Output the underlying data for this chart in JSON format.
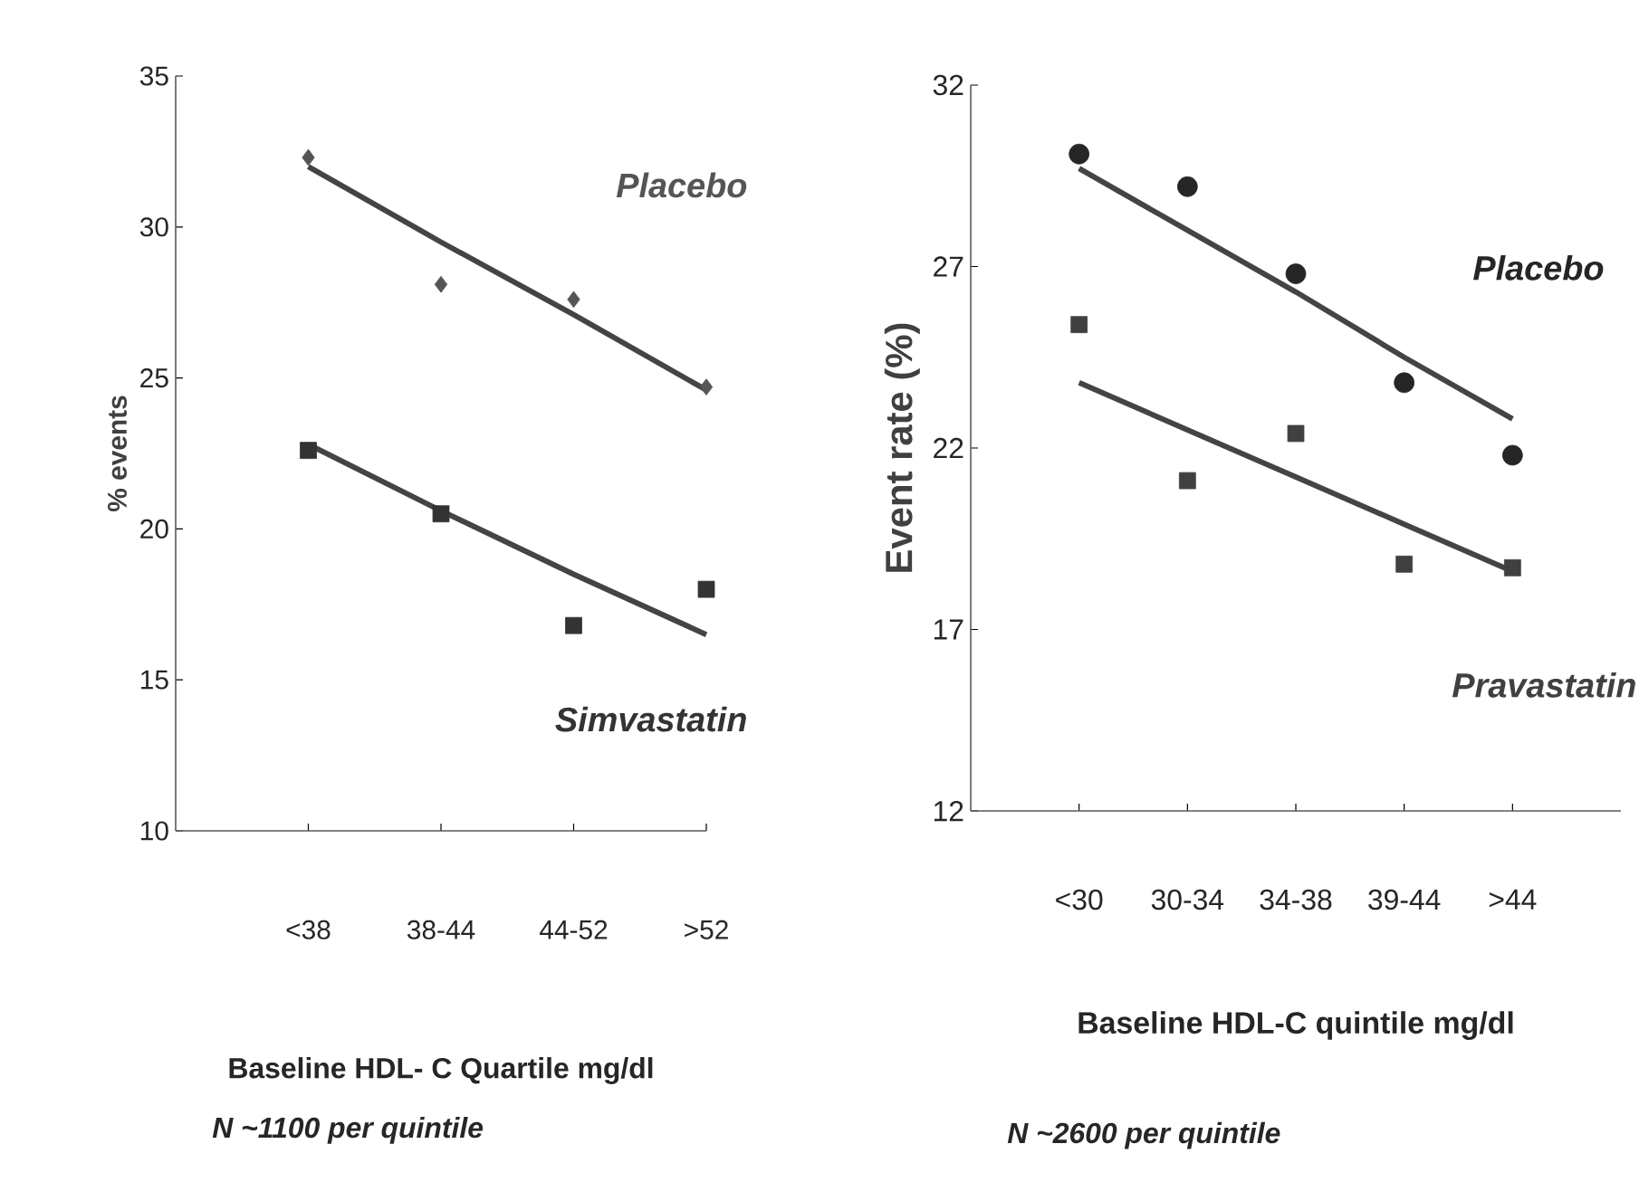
{
  "chart_data": [
    {
      "type": "scatter",
      "ylabel": "% events",
      "xlabel": "Baseline HDL- C Quartile mg/dl",
      "annotations": [
        "N ~1100 per quintile"
      ],
      "categories": [
        "<38",
        "38-44",
        "44-52",
        ">52"
      ],
      "ylim": [
        10,
        35
      ],
      "yticks": [
        10,
        15,
        20,
        25,
        30,
        35
      ],
      "series": [
        {
          "name": "Placebo",
          "color": "#555555",
          "marker": "diamond",
          "values": [
            32.3,
            28.1,
            27.6,
            24.7
          ]
        },
        {
          "name": "Simvastatin",
          "color": "#333333",
          "marker": "square",
          "values": [
            22.6,
            20.5,
            16.8,
            18.0
          ]
        },
        {
          "type": "line",
          "color": "#444444",
          "marker": "none",
          "values": [
            32.0,
            29.5,
            27.1,
            24.6
          ]
        },
        {
          "type": "line",
          "color": "#444444",
          "marker": "none",
          "values": [
            22.8,
            20.6,
            18.5,
            16.5
          ]
        }
      ]
    },
    {
      "type": "scatter",
      "ylabel": "Event rate (%)",
      "xlabel": "Baseline HDL-C quintile mg/dl",
      "annotations": [
        "N ~2600 per quintile"
      ],
      "categories": [
        "<30",
        "30-34",
        "34-38",
        "39-44",
        ">44"
      ],
      "ylim": [
        12,
        32
      ],
      "yticks": [
        12,
        17,
        22,
        27,
        32
      ],
      "series": [
        {
          "name": "Placebo",
          "color": "#262626",
          "marker": "circle",
          "values": [
            30.1,
            29.2,
            26.8,
            23.8,
            21.8
          ]
        },
        {
          "name": "Pravastatin",
          "color": "#404040",
          "marker": "square",
          "values": [
            25.4,
            21.1,
            22.4,
            18.8,
            18.7
          ]
        },
        {
          "type": "line",
          "color": "#444444",
          "marker": "none",
          "values": [
            29.7,
            28.0,
            26.3,
            24.5,
            22.8
          ]
        },
        {
          "type": "line",
          "color": "#444444",
          "marker": "none",
          "values": [
            23.8,
            22.5,
            21.2,
            19.9,
            18.6
          ]
        }
      ]
    }
  ]
}
